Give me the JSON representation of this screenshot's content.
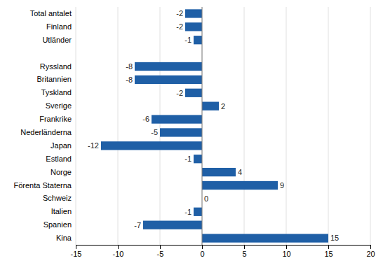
{
  "chart_data": {
    "type": "bar",
    "orientation": "horizontal",
    "categories": [
      "Total antalet",
      "Finland",
      "Utländer",
      null,
      "Ryssland",
      "Britannien",
      "Tyskland",
      "Sverige",
      "Frankrike",
      "Nederländerna",
      "Japan",
      "Estland",
      "Norge",
      "Förenta Staterna",
      "Schweiz",
      "Italien",
      "Spanien",
      "Kina"
    ],
    "values": [
      -2,
      -2,
      -1,
      null,
      -8,
      -8,
      -2,
      2,
      -6,
      -5,
      -12,
      -1,
      4,
      9,
      0,
      -1,
      -7,
      15
    ],
    "color": "#1F5FA6",
    "xlim": [
      -15,
      20
    ],
    "xticks": [
      -15,
      -10,
      -5,
      0,
      5,
      10,
      15,
      20
    ],
    "grid": true,
    "data_labels": true
  }
}
